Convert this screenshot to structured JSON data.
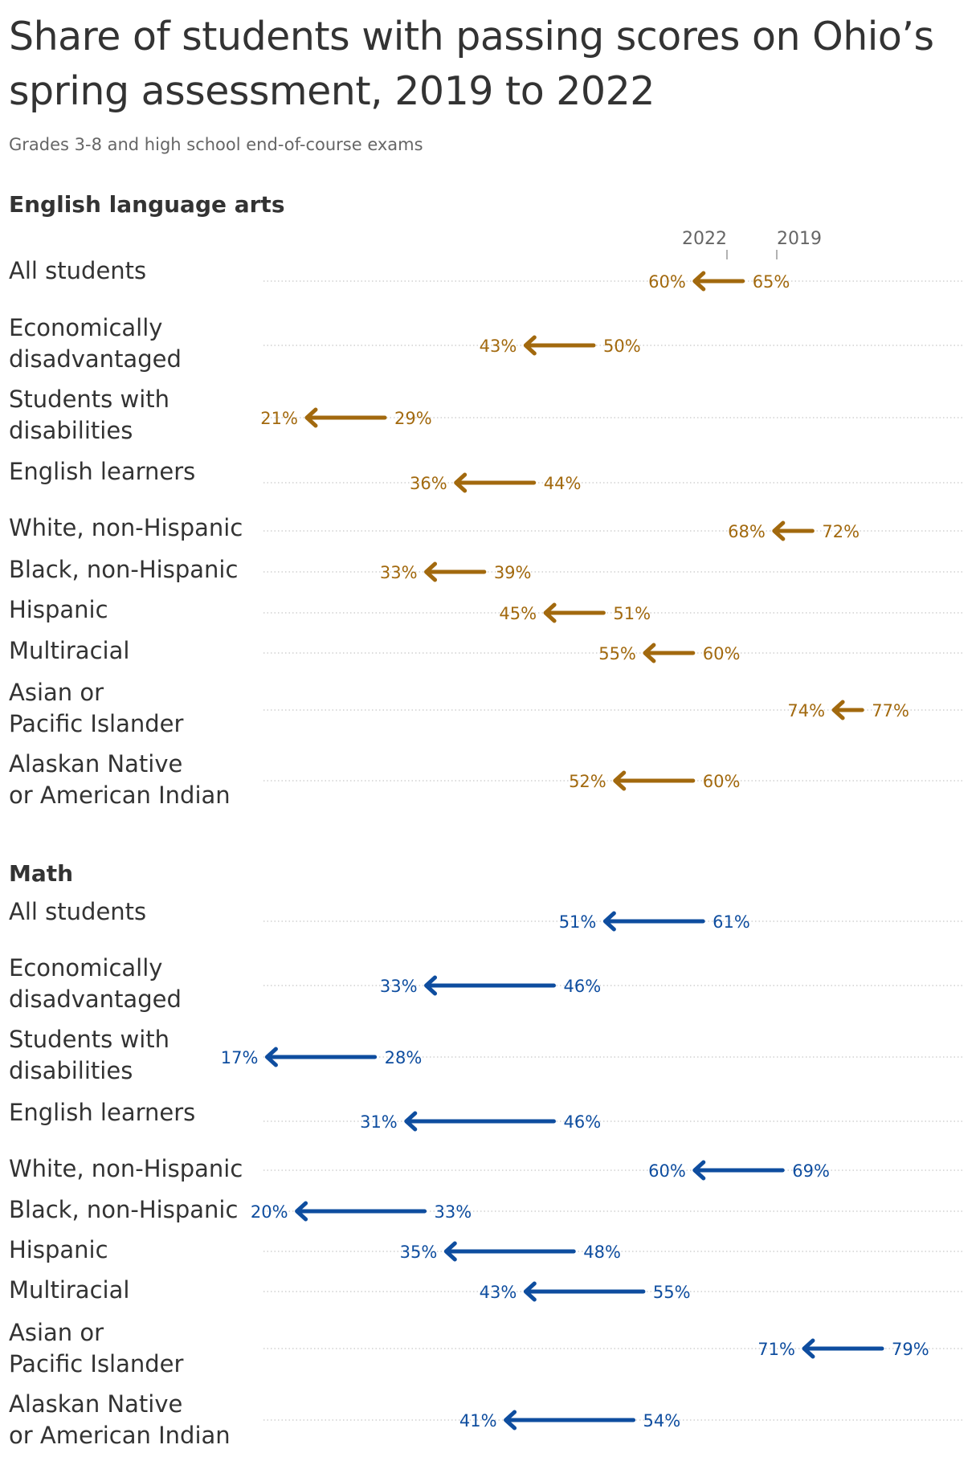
{
  "title": "Share of students with passing scores on Ohio’s spring assessment, 2019 to 2022",
  "subtitle": "Grades 3-8 and high school end-of-course exams",
  "column_heads": {
    "end": "2022",
    "start": "2019"
  },
  "colors": {
    "ela": "#a2690e",
    "math": "#0e4d9f",
    "gridline": "#c8c8c8"
  },
  "chart_data": [
    {
      "type": "arrow",
      "title": "English language arts",
      "series": [
        {
          "name": "2019"
        },
        {
          "name": "2022"
        }
      ],
      "rows": [
        {
          "label": "All students",
          "y2019": 65,
          "y2022": 60,
          "label2019": "65%",
          "label2022": "60%"
        },
        {
          "label": "Economically disadvantaged",
          "y2019": 50,
          "y2022": 43,
          "label2019": "50%",
          "label2022": "43%"
        },
        {
          "label": "Students with disabilities",
          "y2019": 29,
          "y2022": 21,
          "label2019": "29%",
          "label2022": "21%"
        },
        {
          "label": "English learners",
          "y2019": 44,
          "y2022": 36,
          "label2019": "44%",
          "label2022": "36%"
        },
        {
          "label": "White, non-Hispanic",
          "y2019": 72,
          "y2022": 68,
          "label2019": "72%",
          "label2022": "68%"
        },
        {
          "label": "Black, non-Hispanic",
          "y2019": 39,
          "y2022": 33,
          "label2019": "39%",
          "label2022": "33%"
        },
        {
          "label": "Hispanic",
          "y2019": 51,
          "y2022": 45,
          "label2019": "51%",
          "label2022": "45%"
        },
        {
          "label": "Multiracial",
          "y2019": 60,
          "y2022": 55,
          "label2019": "60%",
          "label2022": "55%"
        },
        {
          "label": "Asian or Pacific Islander",
          "y2019": 77,
          "y2022": 74,
          "label2019": "77%",
          "label2022": "74%"
        },
        {
          "label": "Alaskan Native or American Indian",
          "y2019": 60,
          "y2022": 52,
          "label2019": "60%",
          "label2022": "52%"
        }
      ]
    },
    {
      "type": "arrow",
      "title": "Math",
      "series": [
        {
          "name": "2019"
        },
        {
          "name": "2022"
        }
      ],
      "rows": [
        {
          "label": "All students",
          "y2019": 61,
          "y2022": 51,
          "label2019": "61%",
          "label2022": "51%"
        },
        {
          "label": "Economically disadvantaged",
          "y2019": 46,
          "y2022": 33,
          "label2019": "46%",
          "label2022": "33%"
        },
        {
          "label": "Students with disabilities",
          "y2019": 28,
          "y2022": 17,
          "label2019": "28%",
          "label2022": "17%"
        },
        {
          "label": "English learners",
          "y2019": 46,
          "y2022": 31,
          "label2019": "46%",
          "label2022": "31%"
        },
        {
          "label": "White, non-Hispanic",
          "y2019": 69,
          "y2022": 60,
          "label2019": "69%",
          "label2022": "60%"
        },
        {
          "label": "Black, non-Hispanic",
          "y2019": 33,
          "y2022": 20,
          "label2019": "33%",
          "label2022": "20%"
        },
        {
          "label": "Hispanic",
          "y2019": 48,
          "y2022": 35,
          "label2019": "48%",
          "label2022": "35%"
        },
        {
          "label": "Multiracial",
          "y2019": 55,
          "y2022": 43,
          "label2019": "55%",
          "label2022": "43%"
        },
        {
          "label": "Asian or Pacific Islander",
          "y2019": 79,
          "y2022": 71,
          "label2019": "79%",
          "label2022": "71%"
        },
        {
          "label": "Alaskan Native or American Indian",
          "y2019": 54,
          "y2022": 41,
          "label2019": "54%",
          "label2022": "41%"
        }
      ]
    }
  ]
}
